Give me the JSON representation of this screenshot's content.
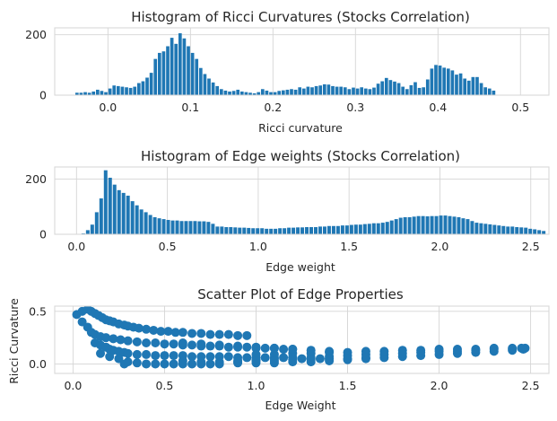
{
  "chart_data": [
    {
      "type": "bar",
      "title": "Histogram of Ricci Curvatures (Stocks Correlation)",
      "xlabel": "Ricci curvature",
      "ylabel": "",
      "xlim": [
        -0.0645,
        0.5345
      ],
      "ylim": [
        0,
        223
      ],
      "xticks": [
        0.0,
        0.1,
        0.2,
        0.3,
        0.4,
        0.5
      ],
      "xtick_labels": [
        "0.0",
        "0.1",
        "0.2",
        "0.3",
        "0.4",
        "0.5"
      ],
      "yticks": [
        0,
        200
      ],
      "ytick_labels": [
        "0",
        "200"
      ],
      "grid": true,
      "bin_start": -0.04,
      "bin_width": 0.005,
      "color": "#1f77b4",
      "values": [
        8,
        8,
        10,
        8,
        12,
        18,
        14,
        10,
        22,
        32,
        30,
        28,
        26,
        24,
        28,
        40,
        46,
        58,
        74,
        120,
        140,
        145,
        162,
        190,
        170,
        205,
        188,
        162,
        140,
        120,
        90,
        70,
        55,
        42,
        30,
        20,
        15,
        12,
        14,
        18,
        12,
        10,
        8,
        6,
        10,
        20,
        15,
        10,
        10,
        14,
        16,
        18,
        20,
        18,
        26,
        22,
        28,
        26,
        30,
        32,
        36,
        35,
        30,
        28,
        28,
        26,
        20,
        25,
        22,
        26,
        22,
        20,
        25,
        38,
        46,
        57,
        50,
        45,
        40,
        28,
        20,
        33,
        43,
        24,
        26,
        52,
        88,
        100,
        98,
        91,
        88,
        82,
        68,
        72,
        55,
        48,
        60,
        60,
        40,
        26,
        22,
        15
      ]
    },
    {
      "type": "bar",
      "title": "Histogram of Edge weights (Stocks Correlation)",
      "xlabel": "Edge weight",
      "ylabel": "",
      "xlim": [
        -0.12,
        2.6
      ],
      "ylim": [
        0,
        244
      ],
      "xticks": [
        0.0,
        0.5,
        1.0,
        1.5,
        2.0,
        2.5
      ],
      "xtick_labels": [
        "0.0",
        "0.5",
        "1.0",
        "1.5",
        "2.0",
        "2.5"
      ],
      "yticks": [
        0,
        200
      ],
      "ytick_labels": [
        "0",
        "200"
      ],
      "grid": true,
      "bin_start": 0.025,
      "bin_width": 0.0246,
      "color": "#1f77b4",
      "values": [
        3,
        15,
        35,
        80,
        130,
        232,
        205,
        180,
        160,
        150,
        140,
        120,
        105,
        90,
        80,
        70,
        62,
        58,
        55,
        52,
        50,
        50,
        48,
        48,
        48,
        48,
        47,
        47,
        45,
        38,
        28,
        28,
        26,
        26,
        25,
        24,
        24,
        23,
        22,
        22,
        22,
        20,
        20,
        20,
        22,
        22,
        24,
        24,
        25,
        25,
        26,
        26,
        26,
        28,
        28,
        30,
        30,
        30,
        32,
        32,
        34,
        35,
        35,
        37,
        38,
        40,
        40,
        42,
        45,
        50,
        55,
        60,
        62,
        62,
        64,
        66,
        66,
        65,
        66,
        66,
        68,
        68,
        66,
        64,
        62,
        58,
        55,
        48,
        42,
        40,
        38,
        36,
        34,
        32,
        30,
        28,
        28,
        26,
        25,
        24,
        20,
        18,
        15,
        12
      ]
    },
    {
      "type": "scatter",
      "title": "Scatter Plot of Edge Properties",
      "xlabel": "Edge Weight",
      "ylabel": "Ricci Curvature",
      "xlim": [
        -0.1,
        2.6
      ],
      "ylim": [
        -0.09,
        0.55
      ],
      "xticks": [
        0.0,
        0.5,
        1.0,
        1.5,
        2.0,
        2.5
      ],
      "xtick_labels": [
        "0.0",
        "0.5",
        "1.0",
        "1.5",
        "2.0",
        "2.5"
      ],
      "yticks": [
        0.0,
        0.5
      ],
      "ytick_labels": [
        "0.0",
        "0.5"
      ],
      "grid": true,
      "color": "#1f77b4",
      "x": [
        0.02,
        0.05,
        0.08,
        0.1,
        0.12,
        0.14,
        0.16,
        0.18,
        0.2,
        0.22,
        0.25,
        0.28,
        0.3,
        0.33,
        0.36,
        0.4,
        0.44,
        0.48,
        0.52,
        0.56,
        0.6,
        0.65,
        0.7,
        0.75,
        0.8,
        0.85,
        0.9,
        0.95,
        0.05,
        0.08,
        0.1,
        0.12,
        0.15,
        0.18,
        0.22,
        0.26,
        0.3,
        0.35,
        0.4,
        0.45,
        0.5,
        0.55,
        0.6,
        0.65,
        0.7,
        0.75,
        0.8,
        0.85,
        0.9,
        0.95,
        1.0,
        1.05,
        1.1,
        1.15,
        1.2,
        0.12,
        0.15,
        0.18,
        0.2,
        0.22,
        0.25,
        0.28,
        0.3,
        0.35,
        0.4,
        0.45,
        0.5,
        0.55,
        0.6,
        0.65,
        0.7,
        0.75,
        0.8,
        0.85,
        0.9,
        0.95,
        1.0,
        1.05,
        1.1,
        1.15,
        1.2,
        1.25,
        1.3,
        1.35,
        1.4,
        0.15,
        0.2,
        0.25,
        0.28,
        0.3,
        0.35,
        0.4,
        0.45,
        0.5,
        0.55,
        0.6,
        0.65,
        0.7,
        0.75,
        0.8,
        0.9,
        1.0,
        1.1,
        1.2,
        1.3,
        1.4,
        1.5,
        1.6,
        1.7,
        1.8,
        1.9,
        2.0,
        2.1,
        2.2,
        2.3,
        2.4,
        2.46,
        0.9,
        1.0,
        1.1,
        1.2,
        1.3,
        1.4,
        1.5,
        1.6,
        1.7,
        1.8,
        1.9,
        2.0,
        2.1,
        2.2,
        2.3,
        2.4,
        2.47,
        1.0,
        1.1,
        1.2,
        1.3,
        1.4,
        1.5,
        1.6,
        1.7,
        1.8,
        1.9,
        2.0,
        2.1,
        2.2,
        2.3,
        2.4,
        2.45,
        0.6,
        0.7,
        0.8,
        0.9,
        1.0,
        1.1,
        1.2,
        1.3,
        1.4,
        0.6,
        0.7,
        0.8,
        0.9,
        1.0,
        1.1,
        1.2,
        1.3,
        1.4,
        1.5,
        1.6
      ],
      "y": [
        0.47,
        0.5,
        0.52,
        0.5,
        0.48,
        0.46,
        0.44,
        0.42,
        0.41,
        0.4,
        0.38,
        0.37,
        0.36,
        0.35,
        0.34,
        0.33,
        0.32,
        0.31,
        0.31,
        0.3,
        0.3,
        0.29,
        0.29,
        0.28,
        0.28,
        0.28,
        0.27,
        0.27,
        0.4,
        0.35,
        0.3,
        0.28,
        0.26,
        0.25,
        0.24,
        0.23,
        0.22,
        0.21,
        0.2,
        0.2,
        0.19,
        0.19,
        0.18,
        0.18,
        0.17,
        0.17,
        0.17,
        0.16,
        0.16,
        0.16,
        0.15,
        0.15,
        0.15,
        0.14,
        0.14,
        0.2,
        0.18,
        0.16,
        0.14,
        0.13,
        0.12,
        0.11,
        0.1,
        0.09,
        0.09,
        0.08,
        0.08,
        0.08,
        0.08,
        0.07,
        0.07,
        0.07,
        0.07,
        0.07,
        0.06,
        0.06,
        0.06,
        0.06,
        0.06,
        0.06,
        0.06,
        0.05,
        0.05,
        0.05,
        0.05,
        0.1,
        0.07,
        0.05,
        0.0,
        0.02,
        0.01,
        0.0,
        0.0,
        0.0,
        0.0,
        0.0,
        0.0,
        0.0,
        0.0,
        0.0,
        0.01,
        0.01,
        0.01,
        0.02,
        0.02,
        0.03,
        0.04,
        0.05,
        0.06,
        0.07,
        0.08,
        0.09,
        0.1,
        0.11,
        0.12,
        0.13,
        0.14,
        0.03,
        0.04,
        0.05,
        0.06,
        0.06,
        0.07,
        0.08,
        0.09,
        0.09,
        0.1,
        0.11,
        0.12,
        0.12,
        0.13,
        0.14,
        0.14,
        0.15,
        0.09,
        0.09,
        0.1,
        0.1,
        0.11,
        0.11,
        0.12,
        0.12,
        0.13,
        0.13,
        0.14,
        0.14,
        0.14,
        0.15,
        0.15,
        0.15,
        0.2,
        0.19,
        0.18,
        0.17,
        0.16,
        0.15,
        0.14,
        0.13,
        0.12,
        0.03,
        0.02,
        0.02,
        0.02,
        0.03,
        0.03,
        0.04,
        0.04,
        0.05,
        0.05,
        0.06
      ]
    }
  ]
}
